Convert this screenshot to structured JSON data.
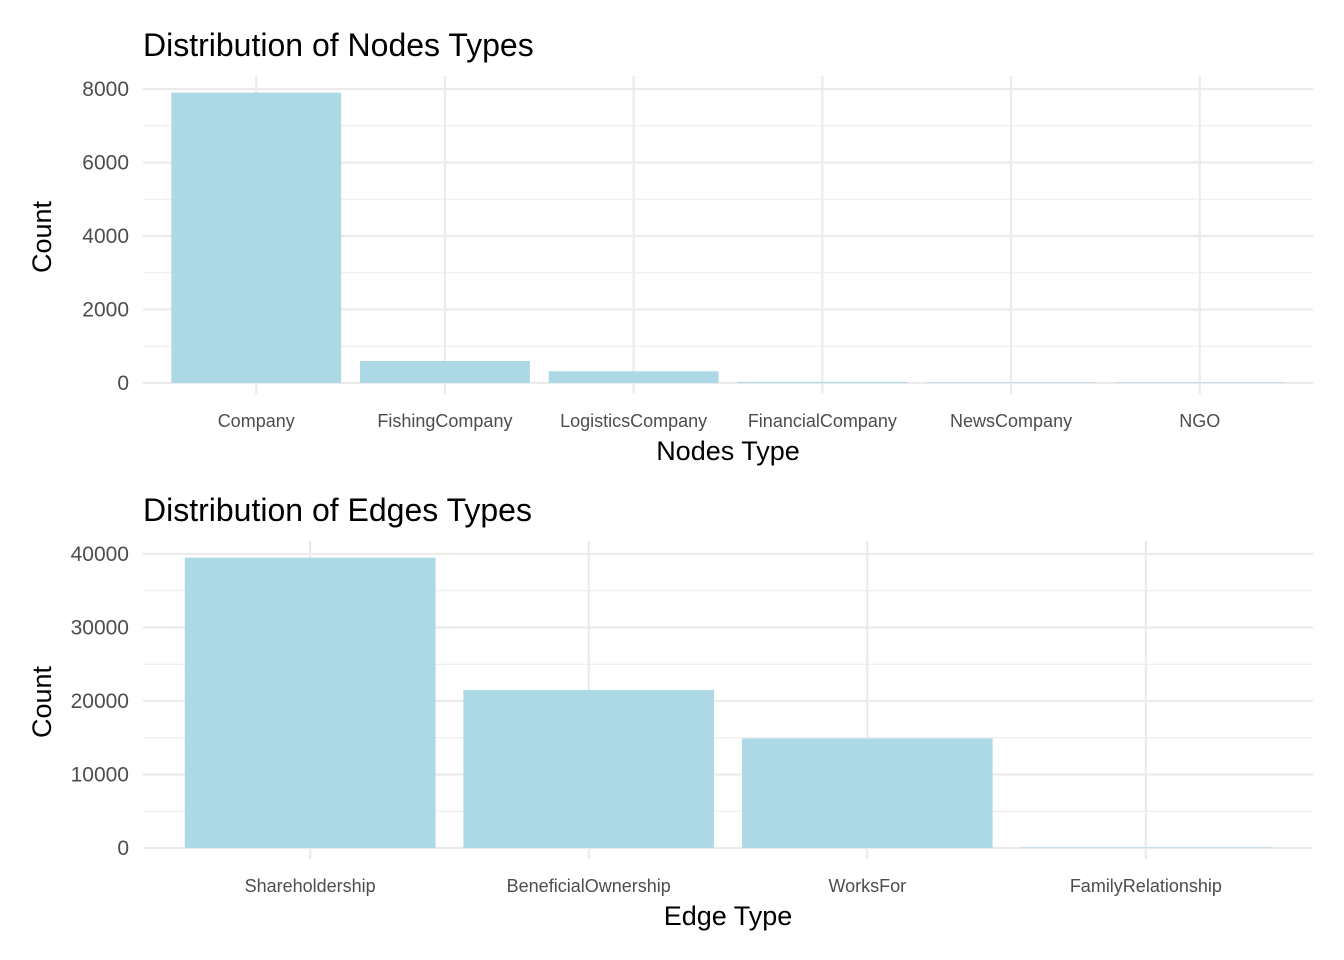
{
  "chart_data": [
    {
      "type": "bar",
      "title": "Distribution of Nodes Types",
      "xlabel": "Nodes Type",
      "ylabel": "Count",
      "categories": [
        "Company",
        "FishingCompany",
        "LogisticsCompany",
        "FinancialCompany",
        "NewsCompany",
        "NGO"
      ],
      "values": [
        7900,
        600,
        320,
        30,
        2,
        1
      ],
      "yticks": [
        0,
        2000,
        4000,
        6000,
        8000
      ],
      "ylim": [
        0,
        8000
      ],
      "bar_color": "#ADD8E6",
      "grid": true
    },
    {
      "type": "bar",
      "title": "Distribution of Edges Types",
      "xlabel": "Edge Type",
      "ylabel": "Count",
      "categories": [
        "Shareholdership",
        "BeneficialOwnership",
        "WorksFor",
        "FamilyRelationship"
      ],
      "values": [
        39500,
        21500,
        14900,
        10
      ],
      "yticks": [
        0,
        10000,
        20000,
        30000,
        40000
      ],
      "ylim": [
        0,
        40000
      ],
      "bar_color": "#ADD8E6",
      "grid": true
    }
  ]
}
